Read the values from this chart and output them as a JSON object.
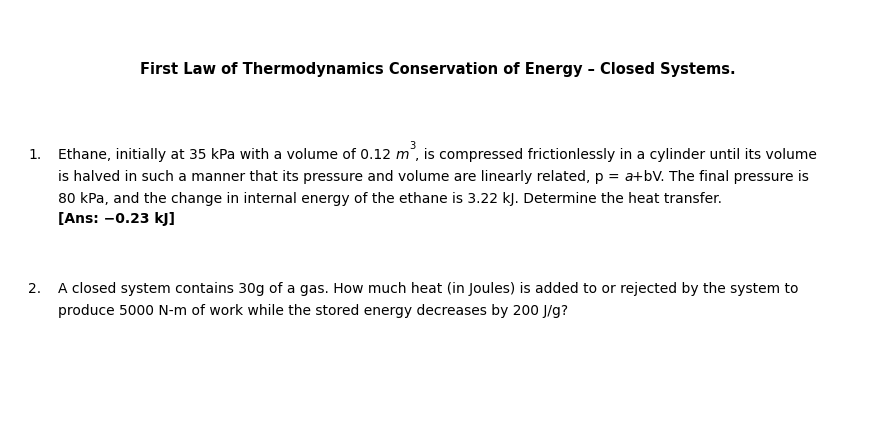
{
  "background_color": "#ffffff",
  "title": "First Law of Thermodynamics Conservation of Energy – Closed Systems.",
  "title_fontsize": 10.5,
  "text_fontsize": 10.0,
  "text_color": "#000000",
  "font_family": "DejaVu Sans",
  "fig_width": 8.77,
  "fig_height": 4.35,
  "fig_dpi": 100
}
